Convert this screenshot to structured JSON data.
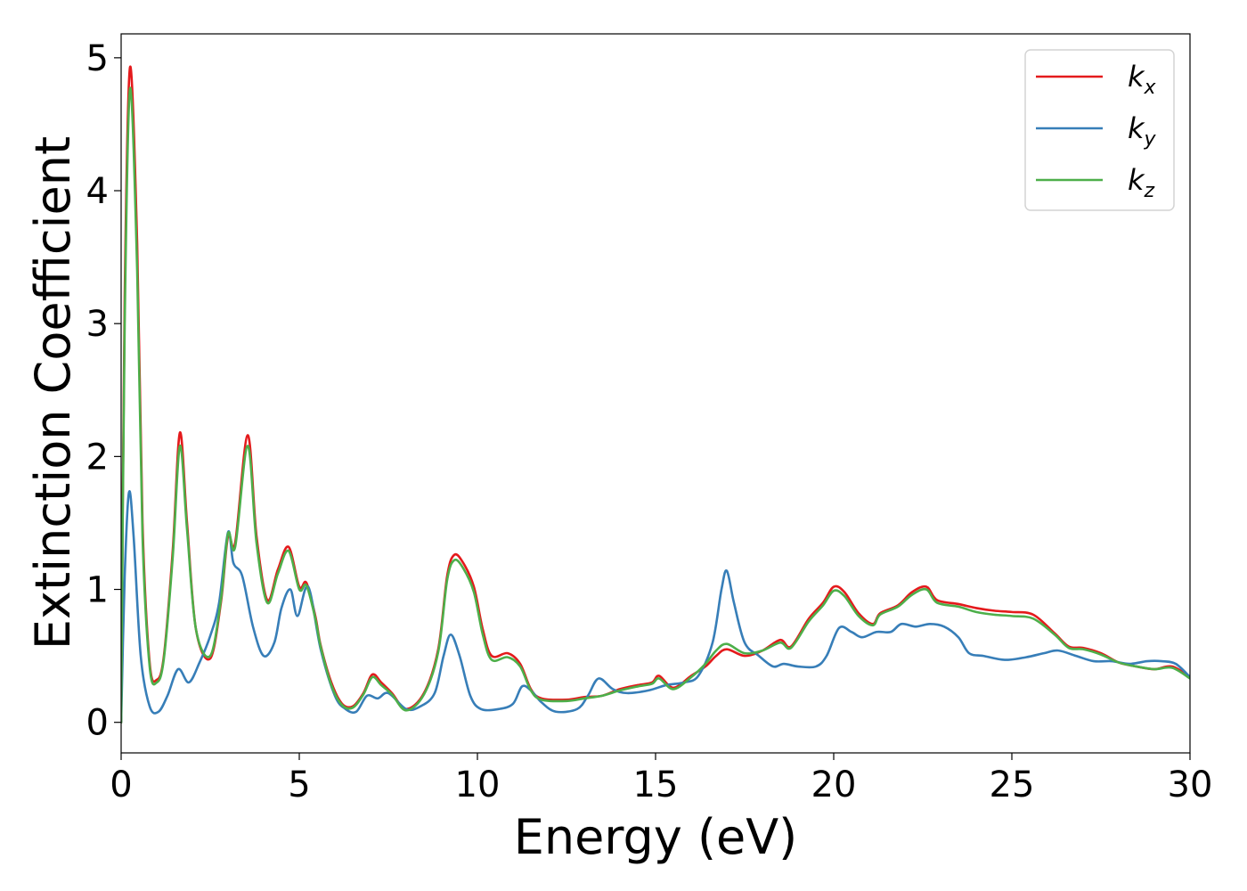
{
  "chart_data": {
    "type": "line",
    "title": "",
    "xlabel": "Energy (eV)",
    "ylabel": "Extinction Coefficient",
    "xlim": [
      0,
      30
    ],
    "ylim": [
      -0.23,
      5.18
    ],
    "xticks": [
      0,
      5,
      10,
      15,
      20,
      25,
      30
    ],
    "yticks": [
      0,
      1,
      2,
      3,
      4,
      5
    ],
    "grid": false,
    "legend_position": "top-right",
    "series": [
      {
        "name": "k",
        "subscript": "x",
        "color": "#e41a1c",
        "points": [
          [
            0,
            0
          ],
          [
            0.1,
            3.2
          ],
          [
            0.25,
            4.93
          ],
          [
            0.45,
            3.6
          ],
          [
            0.6,
            1.5
          ],
          [
            0.8,
            0.45
          ],
          [
            1.0,
            0.32
          ],
          [
            1.2,
            0.5
          ],
          [
            1.45,
            1.3
          ],
          [
            1.65,
            2.18
          ],
          [
            1.85,
            1.5
          ],
          [
            2.1,
            0.7
          ],
          [
            2.5,
            0.48
          ],
          [
            2.8,
            0.9
          ],
          [
            3.0,
            1.4
          ],
          [
            3.2,
            1.35
          ],
          [
            3.55,
            2.16
          ],
          [
            3.8,
            1.4
          ],
          [
            4.1,
            0.92
          ],
          [
            4.4,
            1.15
          ],
          [
            4.7,
            1.32
          ],
          [
            5.0,
            1.02
          ],
          [
            5.2,
            1.05
          ],
          [
            5.45,
            0.8
          ],
          [
            5.6,
            0.58
          ],
          [
            5.9,
            0.3
          ],
          [
            6.2,
            0.14
          ],
          [
            6.5,
            0.12
          ],
          [
            6.8,
            0.22
          ],
          [
            7.05,
            0.36
          ],
          [
            7.3,
            0.3
          ],
          [
            7.6,
            0.22
          ],
          [
            8.0,
            0.1
          ],
          [
            8.5,
            0.22
          ],
          [
            8.9,
            0.55
          ],
          [
            9.15,
            1.1
          ],
          [
            9.35,
            1.26
          ],
          [
            9.6,
            1.2
          ],
          [
            9.9,
            1.02
          ],
          [
            10.15,
            0.7
          ],
          [
            10.4,
            0.5
          ],
          [
            10.85,
            0.52
          ],
          [
            11.2,
            0.44
          ],
          [
            11.5,
            0.25
          ],
          [
            11.8,
            0.18
          ],
          [
            12.5,
            0.17
          ],
          [
            13,
            0.19
          ],
          [
            13.5,
            0.2
          ],
          [
            14,
            0.25
          ],
          [
            14.5,
            0.28
          ],
          [
            14.9,
            0.3
          ],
          [
            15.1,
            0.35
          ],
          [
            15.5,
            0.26
          ],
          [
            16,
            0.35
          ],
          [
            16.4,
            0.42
          ],
          [
            16.7,
            0.5
          ],
          [
            17,
            0.55
          ],
          [
            17.5,
            0.5
          ],
          [
            18,
            0.54
          ],
          [
            18.5,
            0.62
          ],
          [
            18.8,
            0.57
          ],
          [
            19.3,
            0.78
          ],
          [
            19.7,
            0.9
          ],
          [
            20.0,
            1.02
          ],
          [
            20.3,
            0.98
          ],
          [
            20.7,
            0.82
          ],
          [
            21.1,
            0.74
          ],
          [
            21.3,
            0.82
          ],
          [
            21.8,
            0.88
          ],
          [
            22.2,
            0.98
          ],
          [
            22.6,
            1.02
          ],
          [
            22.9,
            0.92
          ],
          [
            23.5,
            0.89
          ],
          [
            24.0,
            0.86
          ],
          [
            24.5,
            0.84
          ],
          [
            25.0,
            0.83
          ],
          [
            25.6,
            0.81
          ],
          [
            26.2,
            0.67
          ],
          [
            26.6,
            0.57
          ],
          [
            27.0,
            0.56
          ],
          [
            27.5,
            0.52
          ],
          [
            28.0,
            0.45
          ],
          [
            28.5,
            0.42
          ],
          [
            29.0,
            0.4
          ],
          [
            29.5,
            0.42
          ],
          [
            30,
            0.34
          ]
        ]
      },
      {
        "name": "k",
        "subscript": "y",
        "color": "#377eb8",
        "points": [
          [
            0,
            0
          ],
          [
            0.1,
            1.1
          ],
          [
            0.22,
            1.73
          ],
          [
            0.35,
            1.4
          ],
          [
            0.55,
            0.5
          ],
          [
            0.8,
            0.12
          ],
          [
            1.05,
            0.08
          ],
          [
            1.3,
            0.2
          ],
          [
            1.6,
            0.4
          ],
          [
            1.9,
            0.3
          ],
          [
            2.2,
            0.45
          ],
          [
            2.5,
            0.65
          ],
          [
            2.75,
            0.9
          ],
          [
            3.0,
            1.43
          ],
          [
            3.15,
            1.2
          ],
          [
            3.4,
            1.1
          ],
          [
            3.7,
            0.72
          ],
          [
            4.0,
            0.5
          ],
          [
            4.3,
            0.6
          ],
          [
            4.5,
            0.86
          ],
          [
            4.75,
            1.0
          ],
          [
            4.95,
            0.8
          ],
          [
            5.25,
            1.02
          ],
          [
            5.6,
            0.55
          ],
          [
            6.0,
            0.2
          ],
          [
            6.3,
            0.1
          ],
          [
            6.6,
            0.08
          ],
          [
            6.9,
            0.2
          ],
          [
            7.2,
            0.18
          ],
          [
            7.5,
            0.22
          ],
          [
            8.0,
            0.1
          ],
          [
            8.4,
            0.12
          ],
          [
            8.8,
            0.22
          ],
          [
            9.05,
            0.5
          ],
          [
            9.25,
            0.66
          ],
          [
            9.5,
            0.5
          ],
          [
            9.8,
            0.2
          ],
          [
            10.1,
            0.1
          ],
          [
            10.6,
            0.1
          ],
          [
            11.0,
            0.14
          ],
          [
            11.25,
            0.27
          ],
          [
            11.5,
            0.24
          ],
          [
            11.8,
            0.15
          ],
          [
            12.2,
            0.08
          ],
          [
            12.8,
            0.1
          ],
          [
            13.1,
            0.2
          ],
          [
            13.4,
            0.33
          ],
          [
            13.8,
            0.25
          ],
          [
            14.2,
            0.22
          ],
          [
            14.8,
            0.24
          ],
          [
            15.3,
            0.28
          ],
          [
            15.8,
            0.3
          ],
          [
            16.2,
            0.35
          ],
          [
            16.6,
            0.6
          ],
          [
            16.85,
            1.0
          ],
          [
            17.0,
            1.14
          ],
          [
            17.2,
            0.9
          ],
          [
            17.5,
            0.6
          ],
          [
            17.9,
            0.5
          ],
          [
            18.3,
            0.42
          ],
          [
            18.6,
            0.44
          ],
          [
            19.0,
            0.42
          ],
          [
            19.5,
            0.42
          ],
          [
            19.8,
            0.5
          ],
          [
            20.15,
            0.71
          ],
          [
            20.5,
            0.68
          ],
          [
            20.8,
            0.64
          ],
          [
            21.2,
            0.68
          ],
          [
            21.6,
            0.68
          ],
          [
            21.9,
            0.74
          ],
          [
            22.3,
            0.72
          ],
          [
            22.7,
            0.74
          ],
          [
            23.1,
            0.72
          ],
          [
            23.5,
            0.64
          ],
          [
            23.8,
            0.52
          ],
          [
            24.2,
            0.5
          ],
          [
            24.8,
            0.47
          ],
          [
            25.4,
            0.49
          ],
          [
            25.9,
            0.52
          ],
          [
            26.3,
            0.54
          ],
          [
            26.8,
            0.5
          ],
          [
            27.3,
            0.46
          ],
          [
            27.8,
            0.46
          ],
          [
            28.3,
            0.44
          ],
          [
            28.8,
            0.46
          ],
          [
            29.2,
            0.46
          ],
          [
            29.6,
            0.44
          ],
          [
            30,
            0.34
          ]
        ]
      },
      {
        "name": "k",
        "subscript": "z",
        "color": "#4daf4a",
        "points": [
          [
            0,
            0
          ],
          [
            0.1,
            3.0
          ],
          [
            0.25,
            4.77
          ],
          [
            0.45,
            3.4
          ],
          [
            0.6,
            1.4
          ],
          [
            0.8,
            0.42
          ],
          [
            1.0,
            0.3
          ],
          [
            1.2,
            0.48
          ],
          [
            1.45,
            1.25
          ],
          [
            1.65,
            2.08
          ],
          [
            1.85,
            1.45
          ],
          [
            2.1,
            0.7
          ],
          [
            2.5,
            0.5
          ],
          [
            2.8,
            0.92
          ],
          [
            3.0,
            1.42
          ],
          [
            3.2,
            1.32
          ],
          [
            3.55,
            2.08
          ],
          [
            3.8,
            1.35
          ],
          [
            4.1,
            0.9
          ],
          [
            4.4,
            1.12
          ],
          [
            4.7,
            1.29
          ],
          [
            5.0,
            1.0
          ],
          [
            5.2,
            1.03
          ],
          [
            5.45,
            0.78
          ],
          [
            5.6,
            0.57
          ],
          [
            5.9,
            0.28
          ],
          [
            6.2,
            0.13
          ],
          [
            6.5,
            0.11
          ],
          [
            6.8,
            0.21
          ],
          [
            7.05,
            0.34
          ],
          [
            7.3,
            0.28
          ],
          [
            7.6,
            0.21
          ],
          [
            8.0,
            0.09
          ],
          [
            8.5,
            0.21
          ],
          [
            8.9,
            0.53
          ],
          [
            9.15,
            1.07
          ],
          [
            9.35,
            1.22
          ],
          [
            9.6,
            1.16
          ],
          [
            9.9,
            0.98
          ],
          [
            10.15,
            0.66
          ],
          [
            10.4,
            0.47
          ],
          [
            10.85,
            0.49
          ],
          [
            11.2,
            0.42
          ],
          [
            11.5,
            0.24
          ],
          [
            11.8,
            0.17
          ],
          [
            12.5,
            0.16
          ],
          [
            13,
            0.18
          ],
          [
            13.5,
            0.2
          ],
          [
            14,
            0.24
          ],
          [
            14.5,
            0.27
          ],
          [
            14.9,
            0.29
          ],
          [
            15.1,
            0.33
          ],
          [
            15.5,
            0.25
          ],
          [
            16,
            0.34
          ],
          [
            16.4,
            0.44
          ],
          [
            16.7,
            0.54
          ],
          [
            17,
            0.59
          ],
          [
            17.5,
            0.52
          ],
          [
            18,
            0.54
          ],
          [
            18.5,
            0.6
          ],
          [
            18.8,
            0.56
          ],
          [
            19.3,
            0.76
          ],
          [
            19.7,
            0.88
          ],
          [
            20.0,
            0.99
          ],
          [
            20.3,
            0.95
          ],
          [
            20.7,
            0.8
          ],
          [
            21.1,
            0.73
          ],
          [
            21.3,
            0.81
          ],
          [
            21.8,
            0.87
          ],
          [
            22.2,
            0.96
          ],
          [
            22.6,
            1.0
          ],
          [
            22.9,
            0.9
          ],
          [
            23.5,
            0.87
          ],
          [
            24.0,
            0.83
          ],
          [
            24.5,
            0.81
          ],
          [
            25.0,
            0.8
          ],
          [
            25.6,
            0.78
          ],
          [
            26.2,
            0.66
          ],
          [
            26.6,
            0.56
          ],
          [
            27.0,
            0.55
          ],
          [
            27.5,
            0.51
          ],
          [
            28.0,
            0.45
          ],
          [
            28.5,
            0.42
          ],
          [
            29.0,
            0.4
          ],
          [
            29.5,
            0.41
          ],
          [
            30,
            0.33
          ]
        ]
      }
    ]
  }
}
